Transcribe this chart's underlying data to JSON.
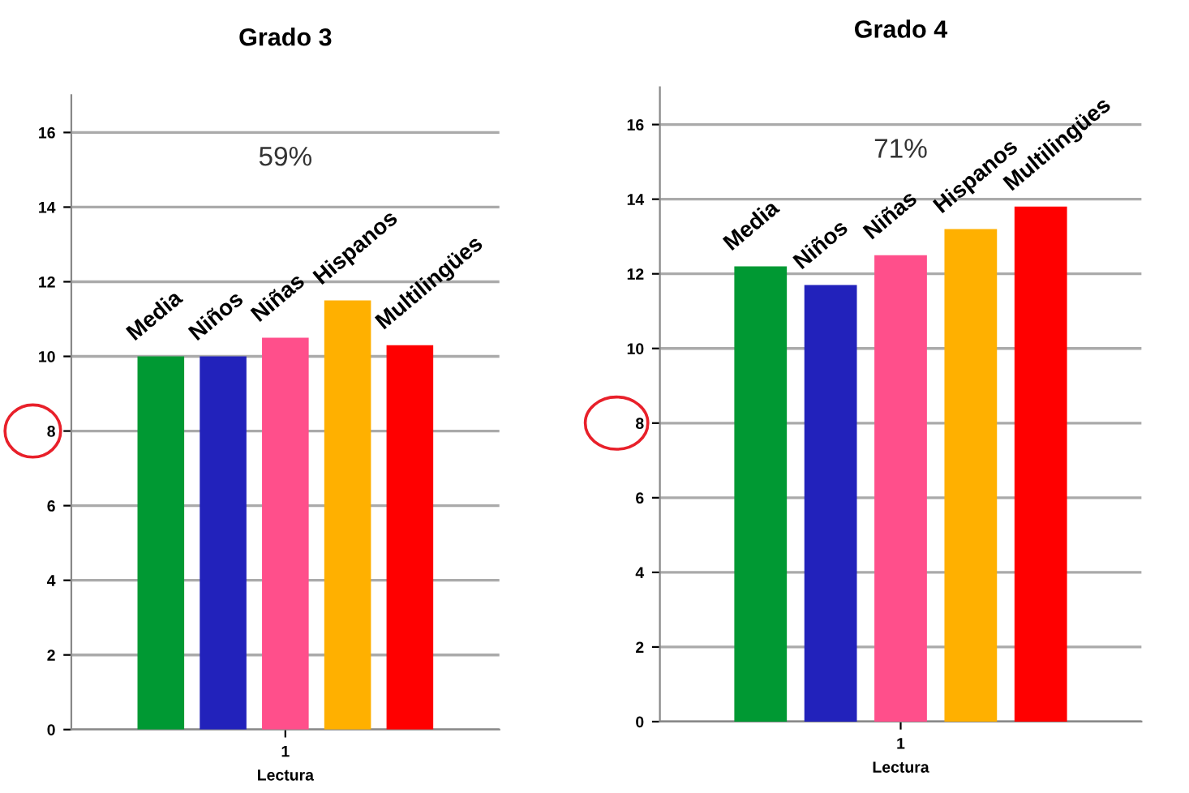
{
  "chart_data": [
    {
      "type": "bar",
      "title": "Grado 3",
      "xlabel": "Lectura",
      "categories": [
        "1"
      ],
      "ylim": [
        0,
        17
      ],
      "yticks": [
        0,
        2,
        4,
        6,
        8,
        10,
        12,
        14,
        16
      ],
      "grid": "y",
      "annotations": [
        "59%"
      ],
      "series": [
        {
          "name": "Media",
          "color": "#009933",
          "values": [
            10
          ]
        },
        {
          "name": "Niños",
          "color": "#2222bb",
          "values": [
            10
          ]
        },
        {
          "name": "Niñas",
          "color": "#ff4f8b",
          "values": [
            10.5
          ]
        },
        {
          "name": "Hispanos",
          "color": "#ffb000",
          "values": [
            11.5
          ]
        },
        {
          "name": "Multilingües",
          "color": "#ff0000",
          "values": [
            10.3
          ]
        }
      ]
    },
    {
      "type": "bar",
      "title": "Grado 4",
      "xlabel": "Lectura",
      "categories": [
        "1"
      ],
      "ylim": [
        0,
        17
      ],
      "yticks": [
        0,
        2,
        4,
        6,
        8,
        10,
        12,
        14,
        16
      ],
      "grid": "y",
      "annotations": [
        "71%"
      ],
      "series": [
        {
          "name": "Media",
          "color": "#009933",
          "values": [
            12.2
          ]
        },
        {
          "name": "Niños",
          "color": "#2222bb",
          "values": [
            11.7
          ]
        },
        {
          "name": "Niñas",
          "color": "#ff4f8b",
          "values": [
            12.5
          ]
        },
        {
          "name": "Hispanos",
          "color": "#ffb000",
          "values": [
            13.2
          ]
        },
        {
          "name": "Multilingües",
          "color": "#ff0000",
          "values": [
            13.8
          ]
        }
      ]
    }
  ]
}
